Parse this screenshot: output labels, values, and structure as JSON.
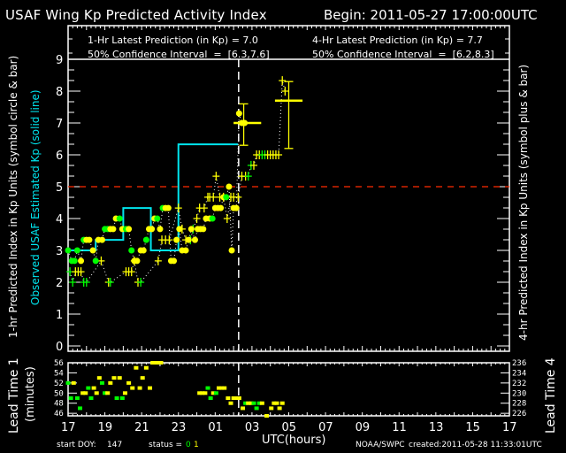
{
  "header": {
    "title": "USAF Wing Kp Predicted Activity Index",
    "begin": "Begin: 2011-05-27 17:00:00UTC",
    "pred1_label": "1-Hr Latest Prediction (in Kp) = 7.0",
    "ci1_label": "50% Confidence Interval  =  [6.3,7.6]",
    "pred4_label": "4-Hr Latest Prediction (in Kp) = 7.7",
    "ci4_label": "50% Confidence Interval  =  [6.2,8.3]"
  },
  "axes": {
    "left_label": "1-hr Predicted Index in Kp Units (symbol circle & bar)",
    "left_label2": "Observed USAF Estimated Kp (solid line)",
    "right_label": "4-hr Predicted Index in Kp Units (symbol plus & bar)",
    "lead1_label": "Lead Time 1",
    "lead1_units": "(minutes)",
    "lead4_label": "Lead Time 4",
    "xlabel": "UTC(hours)"
  },
  "footer": {
    "start_doy_label": "start DOY:",
    "start_doy": "147",
    "status_label": "status =",
    "status_0": "0",
    "status_1": "1",
    "source": "NOAA/SWPC",
    "created": "created:2011-05-28 11:33:01UTC"
  },
  "colors": {
    "bg": "#000000",
    "axis": "#ffffff",
    "observed": "#00e5ee",
    "threshold": "#ff2a00",
    "status0": "#00ff00",
    "status1": "#ffff00",
    "now_line": "#ffffff"
  },
  "chart_data": [
    {
      "type": "line",
      "title": "USAF Wing Kp Predicted Activity Index",
      "xlabel": "UTC(hours)",
      "ylabel": "Kp",
      "x_ticks": [
        "17",
        "19",
        "21",
        "23",
        "01",
        "03",
        "05",
        "07",
        "09",
        "11",
        "13",
        "15",
        "17"
      ],
      "x_range_hours": [
        0,
        48
      ],
      "ylim": [
        0,
        9
      ],
      "y_ticks": [
        0,
        1,
        2,
        3,
        4,
        5,
        6,
        7,
        8,
        9
      ],
      "threshold_kp": 5,
      "now_hour_offset": 18.55,
      "observed_kp_steps": [
        {
          "start": 0,
          "end": 3,
          "kp": 3.0
        },
        {
          "start": 3,
          "end": 6,
          "kp": 3.33
        },
        {
          "start": 6,
          "end": 9,
          "kp": 4.33
        },
        {
          "start": 9,
          "end": 12,
          "kp": 3.0
        },
        {
          "start": 12,
          "end": 15,
          "kp": 6.33
        },
        {
          "start": 15,
          "end": 18.5,
          "kp": 6.33
        }
      ],
      "series_1hr": {
        "name": "1-hr predicted (circle)",
        "points": [
          [
            0.0,
            3.0,
            0
          ],
          [
            0.4,
            2.67,
            0
          ],
          [
            0.7,
            2.67,
            0
          ],
          [
            1.0,
            3.0,
            0
          ],
          [
            1.4,
            2.67,
            1
          ],
          [
            1.7,
            3.33,
            0
          ],
          [
            2.0,
            3.33,
            1
          ],
          [
            2.3,
            3.33,
            1
          ],
          [
            2.7,
            3.0,
            1
          ],
          [
            3.0,
            2.67,
            0
          ],
          [
            3.3,
            3.33,
            1
          ],
          [
            3.7,
            3.33,
            1
          ],
          [
            4.0,
            3.67,
            0
          ],
          [
            4.3,
            3.67,
            0
          ],
          [
            4.6,
            3.67,
            1
          ],
          [
            4.9,
            3.67,
            1
          ],
          [
            5.2,
            4.0,
            1
          ],
          [
            5.6,
            4.0,
            0
          ],
          [
            5.9,
            3.67,
            1
          ],
          [
            6.3,
            3.67,
            0
          ],
          [
            6.6,
            3.67,
            1
          ],
          [
            6.9,
            3.0,
            0
          ],
          [
            7.2,
            2.67,
            1
          ],
          [
            7.5,
            2.67,
            1
          ],
          [
            7.9,
            3.0,
            1
          ],
          [
            8.2,
            3.0,
            1
          ],
          [
            8.5,
            3.33,
            0
          ],
          [
            8.8,
            3.67,
            1
          ],
          [
            9.1,
            3.67,
            1
          ],
          [
            9.4,
            4.0,
            1
          ],
          [
            9.7,
            4.0,
            0
          ],
          [
            10.0,
            3.67,
            1
          ],
          [
            10.3,
            4.33,
            0
          ],
          [
            10.6,
            4.33,
            1
          ],
          [
            10.9,
            4.33,
            1
          ],
          [
            11.2,
            2.67,
            1
          ],
          [
            11.5,
            2.67,
            1
          ],
          [
            11.8,
            3.33,
            1
          ],
          [
            12.1,
            3.67,
            1
          ],
          [
            12.4,
            3.0,
            1
          ],
          [
            12.8,
            3.0,
            1
          ],
          [
            13.1,
            3.33,
            1
          ],
          [
            13.4,
            3.67,
            1
          ],
          [
            13.8,
            3.33,
            1
          ],
          [
            14.1,
            3.67,
            1
          ],
          [
            14.4,
            3.67,
            1
          ],
          [
            14.7,
            3.67,
            1
          ],
          [
            15.0,
            4.0,
            1
          ],
          [
            15.4,
            4.0,
            1
          ],
          [
            15.7,
            4.0,
            0
          ],
          [
            16.0,
            4.33,
            1
          ],
          [
            16.3,
            4.33,
            1
          ],
          [
            16.6,
            4.33,
            1
          ],
          [
            16.9,
            4.67,
            1
          ],
          [
            17.2,
            4.67,
            0
          ],
          [
            17.5,
            5.0,
            1
          ],
          [
            17.8,
            3.0,
            1
          ],
          [
            18.0,
            4.33,
            1
          ],
          [
            18.3,
            4.33,
            1
          ],
          [
            18.6,
            7.3,
            1
          ],
          [
            18.9,
            7.0,
            1
          ],
          [
            19.2,
            7.0,
            1
          ]
        ]
      },
      "series_4hr": {
        "name": "4-hr predicted (plus)",
        "points": [
          [
            0.2,
            2.33,
            0
          ],
          [
            0.5,
            2.0,
            0
          ],
          [
            0.8,
            2.33,
            1
          ],
          [
            1.1,
            2.33,
            1
          ],
          [
            1.4,
            2.33,
            1
          ],
          [
            1.7,
            2.0,
            0
          ],
          [
            2.0,
            2.0,
            0
          ],
          [
            3.6,
            2.67,
            1
          ],
          [
            4.4,
            2.0,
            1
          ],
          [
            4.6,
            2.0,
            0
          ],
          [
            6.3,
            2.33,
            1
          ],
          [
            6.6,
            2.33,
            1
          ],
          [
            6.9,
            2.33,
            1
          ],
          [
            7.2,
            2.67,
            1
          ],
          [
            7.6,
            2.0,
            1
          ],
          [
            7.9,
            2.0,
            0
          ],
          [
            9.8,
            2.67,
            1
          ],
          [
            10.2,
            3.33,
            1
          ],
          [
            10.6,
            3.33,
            1
          ],
          [
            11.0,
            3.33,
            1
          ],
          [
            12.0,
            4.33,
            1
          ],
          [
            12.4,
            3.67,
            1
          ],
          [
            12.8,
            3.33,
            1
          ],
          [
            13.3,
            3.33,
            0
          ],
          [
            13.6,
            3.67,
            0
          ],
          [
            14.0,
            4.0,
            1
          ],
          [
            14.3,
            4.33,
            1
          ],
          [
            14.8,
            4.33,
            1
          ],
          [
            15.2,
            4.67,
            1
          ],
          [
            15.4,
            4.67,
            1
          ],
          [
            15.8,
            4.67,
            1
          ],
          [
            16.1,
            5.33,
            1
          ],
          [
            16.5,
            4.67,
            1
          ],
          [
            16.9,
            4.67,
            1
          ],
          [
            17.3,
            4.0,
            1
          ],
          [
            17.7,
            4.67,
            1
          ],
          [
            18.0,
            4.67,
            1
          ],
          [
            18.5,
            4.67,
            1
          ],
          [
            18.9,
            5.33,
            1
          ],
          [
            19.3,
            5.33,
            1
          ],
          [
            19.6,
            5.33,
            0
          ],
          [
            19.9,
            5.67,
            0
          ],
          [
            20.2,
            5.67,
            1
          ],
          [
            20.5,
            6.0,
            1
          ],
          [
            20.8,
            6.0,
            1
          ],
          [
            21.1,
            6.0,
            0
          ],
          [
            21.4,
            6.0,
            0
          ],
          [
            21.7,
            6.0,
            1
          ],
          [
            22.0,
            6.0,
            1
          ],
          [
            22.3,
            6.0,
            1
          ],
          [
            22.6,
            6.0,
            1
          ],
          [
            22.9,
            6.0,
            1
          ],
          [
            23.3,
            8.33,
            1
          ],
          [
            23.6,
            8.0,
            1
          ]
        ]
      },
      "latest_1hr": {
        "x": 19.1,
        "kp": 7.0,
        "ci": [
          6.3,
          7.6
        ],
        "xspan": [
          18.0,
          21.0
        ]
      },
      "latest_4hr": {
        "x": 24.0,
        "kp": 7.7,
        "ci": [
          6.2,
          8.3
        ],
        "xspan": [
          22.5,
          25.5
        ]
      }
    },
    {
      "type": "scatter",
      "title": "Lead Time",
      "ylabel_left": "Lead Time 1 (minutes)",
      "ylabel_right": "Lead Time 4",
      "left_ticks": [
        "46",
        "48",
        "50",
        "52",
        "54",
        "56"
      ],
      "right_ticks": [
        "226",
        "228",
        "230",
        "232",
        "234",
        "236"
      ],
      "ylim": [
        45.5,
        56
      ],
      "points": [
        [
          0.0,
          52,
          0
        ],
        [
          0.3,
          49,
          0
        ],
        [
          0.6,
          52,
          1
        ],
        [
          1.0,
          49,
          0
        ],
        [
          1.3,
          47,
          0
        ],
        [
          1.6,
          50,
          1
        ],
        [
          1.9,
          50,
          1
        ],
        [
          2.2,
          51,
          0
        ],
        [
          2.5,
          49,
          0
        ],
        [
          2.8,
          51,
          1
        ],
        [
          3.1,
          50,
          1
        ],
        [
          3.4,
          53,
          1
        ],
        [
          3.7,
          52,
          0
        ],
        [
          4.0,
          50,
          0
        ],
        [
          4.3,
          50,
          1
        ],
        [
          4.6,
          52,
          1
        ],
        [
          5.0,
          53,
          1
        ],
        [
          5.3,
          49,
          0
        ],
        [
          5.6,
          53,
          1
        ],
        [
          5.9,
          49,
          0
        ],
        [
          6.2,
          50,
          1
        ],
        [
          6.6,
          52,
          1
        ],
        [
          7.0,
          51,
          1
        ],
        [
          7.4,
          55,
          1
        ],
        [
          7.8,
          51,
          1
        ],
        [
          8.1,
          53,
          1
        ],
        [
          8.5,
          55,
          1
        ],
        [
          8.9,
          51,
          1
        ],
        [
          9.2,
          56,
          1
        ],
        [
          9.5,
          56,
          1
        ],
        [
          9.8,
          56,
          1
        ],
        [
          10.1,
          56,
          1
        ],
        [
          14.3,
          50,
          1
        ],
        [
          14.6,
          50,
          1
        ],
        [
          14.9,
          50,
          1
        ],
        [
          15.2,
          51,
          0
        ],
        [
          15.5,
          49,
          0
        ],
        [
          15.8,
          50,
          1
        ],
        [
          16.1,
          50,
          0
        ],
        [
          16.4,
          51,
          1
        ],
        [
          16.7,
          51,
          1
        ],
        [
          17.0,
          51,
          1
        ],
        [
          17.4,
          49,
          1
        ],
        [
          17.7,
          48,
          1
        ],
        [
          18.0,
          49,
          1
        ],
        [
          18.3,
          49,
          1
        ],
        [
          18.6,
          49,
          1
        ],
        [
          19.0,
          47,
          1
        ],
        [
          19.3,
          48,
          0
        ],
        [
          19.6,
          48,
          1
        ],
        [
          19.9,
          48,
          1
        ],
        [
          20.2,
          48,
          0
        ],
        [
          20.5,
          47,
          0
        ],
        [
          20.8,
          48,
          0
        ],
        [
          21.1,
          48,
          1
        ],
        [
          21.6,
          45.5,
          1
        ],
        [
          22.1,
          47,
          1
        ],
        [
          22.4,
          48,
          1
        ],
        [
          22.7,
          48,
          1
        ],
        [
          23.0,
          47,
          1
        ],
        [
          23.3,
          48,
          1
        ]
      ]
    }
  ]
}
